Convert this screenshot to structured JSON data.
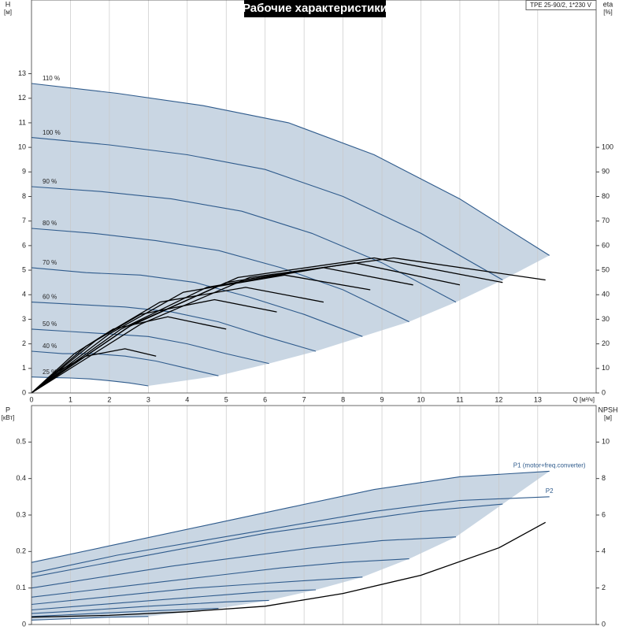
{
  "chart_data": [
    {
      "type": "line",
      "title": "Рабочие характеристики",
      "annotation": "TPE 25-90/2, 1*230 V",
      "xlabel": "Q [м³/ч]",
      "ylabel": "H",
      "yunit": "[м]",
      "y2label": "eta",
      "y2unit": "[%]",
      "xlim": [
        0,
        14.5
      ],
      "xticks": [
        0,
        1,
        2,
        3,
        4,
        5,
        6,
        7,
        8,
        9,
        10,
        11,
        12,
        13
      ],
      "ylim": [
        0,
        16
      ],
      "yticks": [
        0,
        1,
        2,
        3,
        4,
        5,
        6,
        7,
        8,
        9,
        10,
        11,
        12,
        13
      ],
      "y2lim": [
        0,
        160
      ],
      "y2ticks": [
        0,
        10,
        20,
        30,
        40,
        50,
        60,
        70,
        80,
        90,
        100
      ],
      "grid": "x",
      "area_color": "#c9d6e3",
      "envelope_series": [
        0,
        1,
        2,
        3,
        4,
        5,
        6,
        7,
        8
      ],
      "series_label_position": "start",
      "series": [
        {
          "name": "110 %",
          "color": "#2f5b8c",
          "x": [
            0,
            2.2,
            4.4,
            6.6,
            8.8,
            11,
            13.3
          ],
          "values": [
            12.6,
            12.2,
            11.7,
            11.0,
            9.7,
            7.9,
            5.6
          ]
        },
        {
          "name": "100 %",
          "color": "#2f5b8c",
          "x": [
            0,
            2,
            4,
            6,
            8,
            10,
            12.1
          ],
          "values": [
            10.4,
            10.1,
            9.7,
            9.1,
            8.0,
            6.5,
            4.6
          ]
        },
        {
          "name": "90 %",
          "color": "#2f5b8c",
          "x": [
            0,
            1.8,
            3.6,
            5.4,
            7.2,
            9,
            10.9
          ],
          "values": [
            8.4,
            8.2,
            7.9,
            7.4,
            6.5,
            5.3,
            3.7
          ]
        },
        {
          "name": "80 %",
          "color": "#2f5b8c",
          "x": [
            0,
            1.6,
            3.2,
            4.8,
            6.4,
            8,
            9.7
          ],
          "values": [
            6.7,
            6.5,
            6.2,
            5.8,
            5.1,
            4.2,
            2.9
          ]
        },
        {
          "name": "70 %",
          "color": "#2f5b8c",
          "x": [
            0,
            1.4,
            2.8,
            4.2,
            5.6,
            7,
            8.5
          ],
          "values": [
            5.1,
            4.9,
            4.8,
            4.5,
            3.9,
            3.2,
            2.3
          ]
        },
        {
          "name": "60 %",
          "color": "#2f5b8c",
          "x": [
            0,
            1.2,
            2.4,
            3.6,
            4.8,
            6,
            7.3
          ],
          "values": [
            3.7,
            3.6,
            3.5,
            3.3,
            2.9,
            2.3,
            1.7
          ]
        },
        {
          "name": "50 %",
          "color": "#2f5b8c",
          "x": [
            0,
            1,
            2,
            3,
            4,
            5,
            6.1
          ],
          "values": [
            2.6,
            2.5,
            2.4,
            2.3,
            2.0,
            1.6,
            1.2
          ]
        },
        {
          "name": "40 %",
          "color": "#2f5b8c",
          "x": [
            0,
            0.8,
            1.6,
            2.4,
            3.2,
            4,
            4.8
          ],
          "values": [
            1.7,
            1.6,
            1.6,
            1.5,
            1.3,
            1.0,
            0.7
          ]
        },
        {
          "name": "25 %",
          "color": "#2f5b8c",
          "x": [
            0,
            0.5,
            1,
            1.5,
            2,
            2.5,
            3.0
          ],
          "values": [
            0.65,
            0.63,
            0.61,
            0.57,
            0.5,
            0.41,
            0.29
          ]
        },
        {
          "color": "#000000",
          "axis": "y2",
          "x": [
            0,
            0.7,
            1.4,
            2.4,
            3.2
          ],
          "values": [
            0,
            9,
            15,
            18,
            15
          ]
        },
        {
          "color": "#000000",
          "axis": "y2",
          "x": [
            0,
            1.1,
            2.1,
            3.5,
            5.0
          ],
          "values": [
            0,
            16,
            26,
            31,
            26
          ]
        },
        {
          "color": "#000000",
          "axis": "y2",
          "x": [
            0,
            1.4,
            2.8,
            4.7,
            6.3
          ],
          "values": [
            0,
            19,
            32,
            38,
            33
          ]
        },
        {
          "color": "#000000",
          "axis": "y2",
          "x": [
            0,
            1.7,
            3.3,
            5.5,
            7.5
          ],
          "values": [
            0,
            22,
            37,
            43,
            37
          ]
        },
        {
          "color": "#000000",
          "axis": "y2",
          "x": [
            0,
            2,
            3.9,
            6.5,
            8.7
          ],
          "values": [
            0,
            24,
            41,
            48,
            42
          ]
        },
        {
          "color": "#000000",
          "axis": "y2",
          "x": [
            0,
            2.3,
            4.5,
            7.5,
            9.8
          ],
          "values": [
            0,
            26,
            43,
            51,
            44
          ]
        },
        {
          "color": "#000000",
          "axis": "y2",
          "x": [
            0,
            2.5,
            5,
            8.3,
            11
          ],
          "values": [
            0,
            27,
            45,
            53,
            44
          ]
        },
        {
          "color": "#000000",
          "axis": "y2",
          "x": [
            0,
            2.6,
            5.3,
            8.8,
            12.1
          ],
          "values": [
            0,
            28,
            47,
            55,
            45
          ]
        },
        {
          "color": "#000000",
          "axis": "y2",
          "x": [
            0,
            2.8,
            5.6,
            9.3,
            13.2
          ],
          "values": [
            0,
            28,
            47,
            55,
            46
          ]
        }
      ]
    },
    {
      "type": "line",
      "ylabel": "P",
      "yunit": "[кВт]",
      "y2label": "NPSH",
      "y2unit": "[м]",
      "xlim": [
        0,
        14.5
      ],
      "ylim": [
        0,
        0.6
      ],
      "yticks": [
        0,
        0.1,
        0.2,
        0.3,
        0.4,
        0.5
      ],
      "y2lim": [
        0,
        12
      ],
      "y2ticks": [
        0,
        2,
        4,
        6,
        8,
        10
      ],
      "grid": "x",
      "area_color": "#c9d6e3",
      "envelope_series": [
        0,
        2,
        3,
        4,
        5,
        6,
        7,
        8,
        9
      ],
      "series_label_position": "end",
      "series": [
        {
          "name": "P1 (motor+freq.converter)",
          "color": "#2f5b8c",
          "x": [
            0,
            2.2,
            4.4,
            6.6,
            8.8,
            11,
            13.3
          ],
          "values": [
            0.17,
            0.22,
            0.27,
            0.32,
            0.37,
            0.405,
            0.42
          ]
        },
        {
          "name": "P2",
          "color": "#2f5b8c",
          "x": [
            0,
            2.2,
            4.4,
            6.6,
            8.8,
            11,
            13.3
          ],
          "values": [
            0.14,
            0.19,
            0.23,
            0.27,
            0.31,
            0.34,
            0.35
          ]
        },
        {
          "color": "#2f5b8c",
          "x": [
            0,
            2,
            4,
            6,
            8,
            10,
            12.1
          ],
          "values": [
            0.13,
            0.17,
            0.21,
            0.25,
            0.28,
            0.31,
            0.33
          ]
        },
        {
          "color": "#2f5b8c",
          "x": [
            0,
            1.8,
            3.6,
            5.4,
            7.2,
            9,
            10.9
          ],
          "values": [
            0.1,
            0.13,
            0.16,
            0.185,
            0.21,
            0.23,
            0.24
          ]
        },
        {
          "color": "#2f5b8c",
          "x": [
            0,
            1.6,
            3.2,
            4.8,
            6.4,
            8,
            9.7
          ],
          "values": [
            0.075,
            0.095,
            0.115,
            0.135,
            0.155,
            0.17,
            0.18
          ]
        },
        {
          "color": "#2f5b8c",
          "x": [
            0,
            1.4,
            2.8,
            4.2,
            5.6,
            7,
            8.5
          ],
          "values": [
            0.055,
            0.07,
            0.085,
            0.1,
            0.11,
            0.12,
            0.13
          ]
        },
        {
          "color": "#2f5b8c",
          "x": [
            0,
            1.2,
            2.4,
            3.6,
            4.8,
            6,
            7.3
          ],
          "values": [
            0.04,
            0.05,
            0.06,
            0.07,
            0.08,
            0.09,
            0.095
          ]
        },
        {
          "color": "#2f5b8c",
          "x": [
            0,
            1,
            2,
            3,
            4,
            5,
            6.1
          ],
          "values": [
            0.03,
            0.036,
            0.043,
            0.05,
            0.056,
            0.062,
            0.066
          ]
        },
        {
          "color": "#2f5b8c",
          "x": [
            0,
            0.8,
            1.6,
            2.4,
            3.2,
            4,
            4.8
          ],
          "values": [
            0.022,
            0.026,
            0.03,
            0.034,
            0.038,
            0.041,
            0.044
          ]
        },
        {
          "color": "#2f5b8c",
          "x": [
            0,
            0.5,
            1,
            1.5,
            2,
            2.5,
            3.0
          ],
          "values": [
            0.012,
            0.014,
            0.016,
            0.018,
            0.02,
            0.021,
            0.022
          ]
        },
        {
          "color": "#000000",
          "axis": "y2",
          "x": [
            0,
            2,
            4,
            6,
            8,
            10,
            12,
            13.2
          ],
          "values": [
            0.4,
            0.5,
            0.7,
            1.0,
            1.7,
            2.7,
            4.2,
            5.6
          ]
        }
      ]
    }
  ]
}
